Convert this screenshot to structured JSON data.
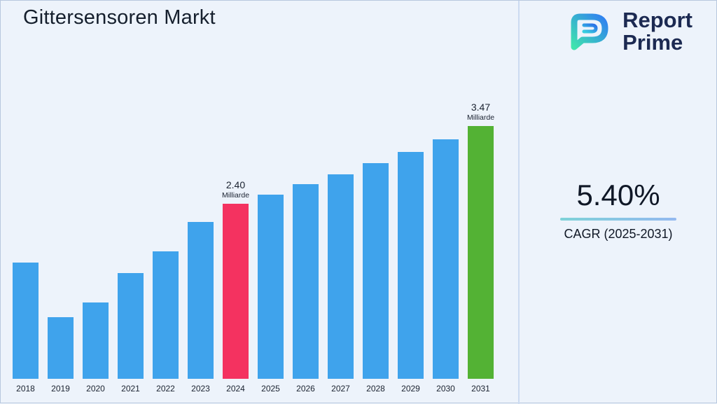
{
  "title": "Gittersensoren Markt",
  "logo": {
    "line1": "Report",
    "line2": "Prime"
  },
  "stats": {
    "cagr_value": "5.40%",
    "cagr_label": "CAGR (2025-2031)"
  },
  "chart_data": {
    "type": "bar",
    "title": "Gittersensoren Markt",
    "xlabel": "",
    "ylabel": "",
    "unit": "Milliarde",
    "grid": false,
    "legend": false,
    "categories": [
      "2018",
      "2019",
      "2020",
      "2021",
      "2022",
      "2023",
      "2024",
      "2025",
      "2026",
      "2027",
      "2028",
      "2029",
      "2030",
      "2031"
    ],
    "values": [
      1.6,
      0.85,
      1.05,
      1.45,
      1.75,
      2.15,
      2.4,
      2.53,
      2.67,
      2.81,
      2.96,
      3.12,
      3.29,
      3.47
    ],
    "ylim": [
      0,
      3.6
    ],
    "bar_color": "#3FA3EC",
    "highlights": [
      {
        "category": "2024",
        "color": "#F43260",
        "label": "2.40",
        "sublabel": "Milliarde"
      },
      {
        "category": "2031",
        "color": "#53B234",
        "label": "3.47",
        "sublabel": "Milliarde"
      }
    ]
  }
}
